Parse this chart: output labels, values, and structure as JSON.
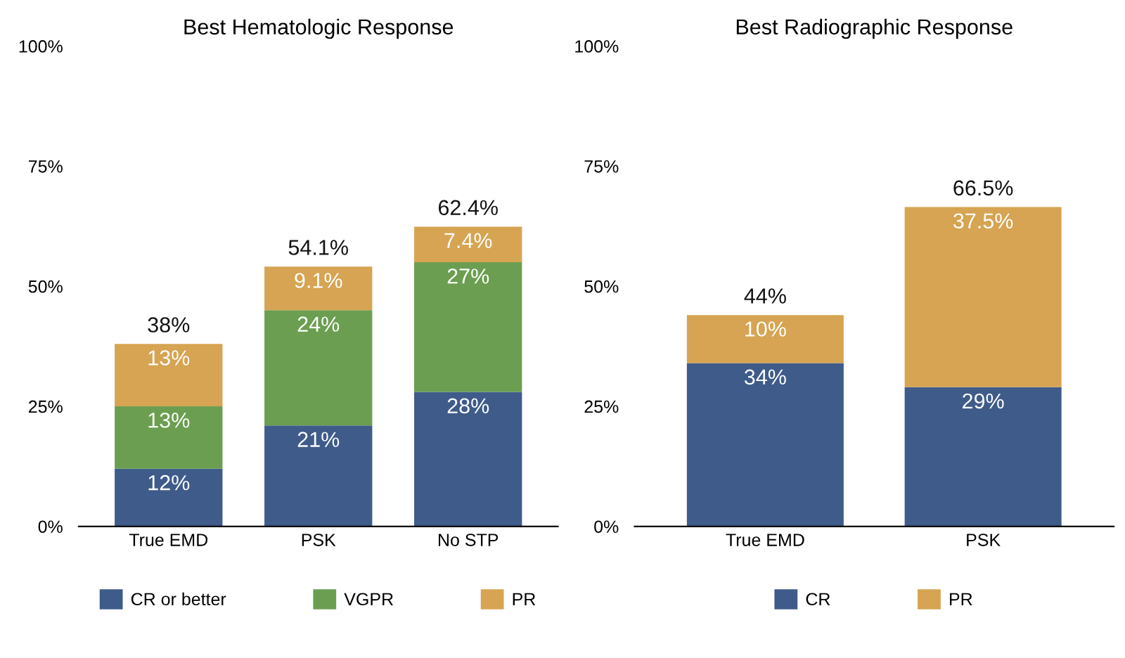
{
  "chart_data": [
    {
      "type": "bar",
      "title": "Best Hematologic Response",
      "categories": [
        "True EMD",
        "PSK",
        "No STP"
      ],
      "stacked": true,
      "series": [
        {
          "name": "CR or better",
          "color": "#3f5b8a",
          "values": [
            12,
            21,
            28
          ],
          "value_labels": [
            "12%",
            "21%",
            "28%"
          ]
        },
        {
          "name": "VGPR",
          "color": "#6b9e51",
          "values": [
            13,
            24,
            27
          ],
          "value_labels": [
            "13%",
            "24%",
            "27%"
          ]
        },
        {
          "name": "PR",
          "color": "#d6a452",
          "values": [
            13,
            9.1,
            7.4
          ],
          "value_labels": [
            "13%",
            "9.1%",
            "7.4%"
          ]
        }
      ],
      "totals": [
        "38%",
        "54.1%",
        "62.4%"
      ],
      "ylim": [
        0,
        100
      ],
      "yticks": [
        {
          "value": 0,
          "label": "0%"
        },
        {
          "value": 25,
          "label": "25%"
        },
        {
          "value": 50,
          "label": "50%"
        },
        {
          "value": 75,
          "label": "75%"
        },
        {
          "value": 100,
          "label": "100%"
        }
      ],
      "grid": false,
      "legend": "bottom"
    },
    {
      "type": "bar",
      "title": "Best Radiographic Response",
      "categories": [
        "True EMD",
        "PSK"
      ],
      "stacked": true,
      "series": [
        {
          "name": "CR",
          "color": "#3f5b8a",
          "values": [
            34,
            29
          ],
          "value_labels": [
            "34%",
            "29%"
          ]
        },
        {
          "name": "PR",
          "color": "#d6a452",
          "values": [
            10,
            37.5
          ],
          "value_labels": [
            "10%",
            "37.5%"
          ]
        }
      ],
      "totals": [
        "44%",
        "66.5%"
      ],
      "ylim": [
        0,
        100
      ],
      "yticks": [
        {
          "value": 0,
          "label": "0%"
        },
        {
          "value": 25,
          "label": "25%"
        },
        {
          "value": 50,
          "label": "50%"
        },
        {
          "value": 75,
          "label": "75%"
        },
        {
          "value": 100,
          "label": "100%"
        }
      ],
      "grid": false,
      "legend": "bottom"
    }
  ]
}
